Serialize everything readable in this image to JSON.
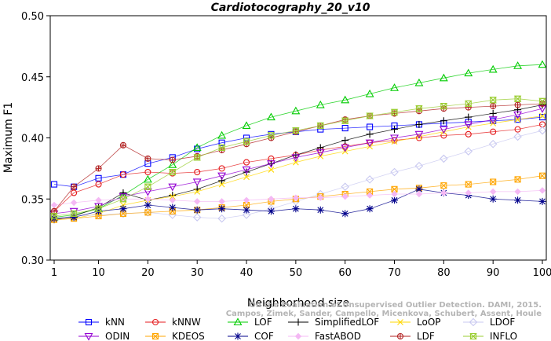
{
  "chart_data": {
    "type": "line",
    "title": "Cardiotocography_20_v10",
    "xlabel": "Neighborhood size",
    "ylabel": "Maximum F1",
    "xlim": [
      1,
      100
    ],
    "ylim": [
      0.3,
      0.5
    ],
    "x_ticks": [
      1,
      10,
      20,
      30,
      40,
      50,
      60,
      70,
      80,
      90,
      100
    ],
    "y_ticks": [
      "0.30",
      "0.35",
      "0.40",
      "0.45",
      "0.50"
    ],
    "grid": false,
    "legend_position": "bottom",
    "x": [
      1,
      5,
      10,
      15,
      20,
      25,
      30,
      35,
      40,
      45,
      50,
      55,
      60,
      65,
      70,
      75,
      80,
      85,
      90,
      95,
      100
    ],
    "series": [
      {
        "name": "kNN",
        "color": "#0000ff",
        "marker": "square",
        "values": [
          0.362,
          0.36,
          0.367,
          0.37,
          0.379,
          0.384,
          0.391,
          0.396,
          0.4,
          0.403,
          0.405,
          0.407,
          0.408,
          0.409,
          0.41,
          0.411,
          0.412,
          0.413,
          0.414,
          0.415,
          0.417
        ]
      },
      {
        "name": "kNNW",
        "color": "#e41a1c",
        "marker": "circle",
        "values": [
          0.34,
          0.355,
          0.362,
          0.37,
          0.372,
          0.371,
          0.372,
          0.375,
          0.38,
          0.383,
          0.386,
          0.39,
          0.393,
          0.396,
          0.398,
          0.4,
          0.402,
          0.403,
          0.405,
          0.407,
          0.411
        ]
      },
      {
        "name": "LOF",
        "color": "#00cc00",
        "marker": "triangle-up",
        "values": [
          0.335,
          0.337,
          0.342,
          0.353,
          0.366,
          0.378,
          0.392,
          0.402,
          0.41,
          0.417,
          0.422,
          0.427,
          0.431,
          0.436,
          0.441,
          0.445,
          0.449,
          0.453,
          0.456,
          0.459,
          0.46
        ]
      },
      {
        "name": "SimplifiedLOF",
        "color": "#000000",
        "marker": "plus",
        "values": [
          0.333,
          0.336,
          0.343,
          0.355,
          0.349,
          0.353,
          0.358,
          0.365,
          0.372,
          0.379,
          0.386,
          0.392,
          0.398,
          0.403,
          0.407,
          0.411,
          0.414,
          0.417,
          0.42,
          0.423,
          0.427
        ]
      },
      {
        "name": "LoOP",
        "color": "#ffd700",
        "marker": "cross",
        "values": [
          0.333,
          0.334,
          0.338,
          0.345,
          0.349,
          0.352,
          0.356,
          0.362,
          0.368,
          0.374,
          0.38,
          0.385,
          0.389,
          0.393,
          0.397,
          0.401,
          0.405,
          0.409,
          0.412,
          0.415,
          0.418
        ]
      },
      {
        "name": "LDOF",
        "color": "#c8c8f0",
        "marker": "diamond",
        "values": [
          0.334,
          0.336,
          0.337,
          0.338,
          0.339,
          0.337,
          0.335,
          0.334,
          0.337,
          0.342,
          0.348,
          0.354,
          0.36,
          0.366,
          0.372,
          0.377,
          0.383,
          0.389,
          0.395,
          0.401,
          0.406
        ]
      },
      {
        "name": "ODIN",
        "color": "#9400d3",
        "marker": "triangle-down",
        "values": [
          0.338,
          0.34,
          0.344,
          0.352,
          0.356,
          0.36,
          0.364,
          0.369,
          0.374,
          0.379,
          0.384,
          0.388,
          0.392,
          0.396,
          0.4,
          0.403,
          0.407,
          0.411,
          0.415,
          0.419,
          0.424
        ]
      },
      {
        "name": "KDEOS",
        "color": "#ffa500",
        "marker": "square-x",
        "values": [
          0.333,
          0.334,
          0.336,
          0.338,
          0.339,
          0.34,
          0.341,
          0.343,
          0.345,
          0.348,
          0.35,
          0.352,
          0.354,
          0.356,
          0.358,
          0.359,
          0.361,
          0.362,
          0.364,
          0.366,
          0.369
        ]
      },
      {
        "name": "COF",
        "color": "#00008b",
        "marker": "star",
        "values": [
          0.334,
          0.335,
          0.34,
          0.342,
          0.345,
          0.343,
          0.341,
          0.342,
          0.341,
          0.34,
          0.342,
          0.341,
          0.338,
          0.342,
          0.349,
          0.358,
          0.355,
          0.353,
          0.35,
          0.349,
          0.348
        ]
      },
      {
        "name": "FastABOD",
        "color": "#f4b8f4",
        "marker": "diamond-filled",
        "values": [
          0.345,
          0.347,
          0.349,
          0.35,
          0.35,
          0.349,
          0.348,
          0.348,
          0.349,
          0.35,
          0.351,
          0.351,
          0.352,
          0.353,
          0.354,
          0.354,
          0.355,
          0.355,
          0.356,
          0.356,
          0.357
        ]
      },
      {
        "name": "LDF",
        "color": "#b22222",
        "marker": "circle-plus",
        "values": [
          0.34,
          0.36,
          0.375,
          0.394,
          0.383,
          0.382,
          0.385,
          0.39,
          0.395,
          0.4,
          0.405,
          0.41,
          0.415,
          0.418,
          0.42,
          0.422,
          0.424,
          0.425,
          0.426,
          0.427,
          0.428
        ]
      },
      {
        "name": "INFLO",
        "color": "#9acd32",
        "marker": "hourglass",
        "values": [
          0.336,
          0.338,
          0.342,
          0.35,
          0.36,
          0.372,
          0.384,
          0.392,
          0.397,
          0.402,
          0.406,
          0.41,
          0.414,
          0.418,
          0.421,
          0.424,
          0.426,
          0.428,
          0.431,
          0.432,
          0.43
        ]
      }
    ],
    "legend": [
      {
        "label": "kNN",
        "series": 0
      },
      {
        "label": "kNNW",
        "series": 1
      },
      {
        "label": "LOF",
        "series": 2
      },
      {
        "label": "SimplifiedLOF",
        "series": 3
      },
      {
        "label": "LoOP",
        "series": 4
      },
      {
        "label": "LDOF",
        "series": 5
      },
      {
        "label": "ODIN",
        "series": 6
      },
      {
        "label": "KDEOS",
        "series": 7
      },
      {
        "label": "COF",
        "series": 8
      },
      {
        "label": "FastABOD",
        "series": 9
      },
      {
        "label": "LDF",
        "series": 10
      },
      {
        "label": "INFLO",
        "series": 11
      }
    ],
    "watermark": [
      "On the Evaluation of Unsupervised Outlier Detection. DAMI, 2015.",
      "Campos, Zimek, Sander, Campello, Micenkova, Schubert, Assent, Houle"
    ]
  }
}
